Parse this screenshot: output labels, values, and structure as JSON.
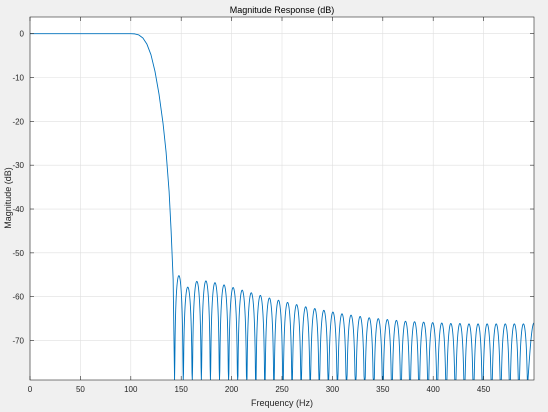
{
  "window": {
    "background": "#f0f0f0"
  },
  "chart_data": {
    "type": "line",
    "title": "Magnitude Response (dB)",
    "xlabel": "Frequency (Hz)",
    "ylabel": "Magnitude (dB)",
    "xlim": [
      0,
      500
    ],
    "ylim": [
      -79,
      3.8
    ],
    "xticks": [
      0,
      50,
      100,
      150,
      200,
      250,
      300,
      350,
      400,
      450
    ],
    "yticks": [
      0,
      -10,
      -20,
      -30,
      -40,
      -50,
      -60,
      -70
    ],
    "grid": true,
    "colors": {
      "line": "#0072bd",
      "axes_bg": "#ffffff",
      "grid": "#dfdfdf",
      "axis": "#262626"
    },
    "passband": [
      [
        0,
        0
      ],
      [
        100,
        0
      ],
      [
        104,
        -0.05
      ],
      [
        108,
        -0.3
      ],
      [
        112,
        -1.0
      ],
      [
        116,
        -2.4
      ],
      [
        120,
        -4.8
      ],
      [
        124,
        -8.6
      ],
      [
        128,
        -13.8
      ],
      [
        132,
        -20.5
      ],
      [
        135,
        -27
      ],
      [
        138,
        -36
      ],
      [
        140,
        -45
      ],
      [
        142,
        -56
      ],
      [
        143.4,
        -79
      ]
    ],
    "stopband": {
      "nulls": [
        143.4,
        152,
        161,
        170,
        179,
        188,
        197,
        206,
        215,
        224,
        233,
        242,
        251,
        260,
        269,
        278,
        287,
        296,
        305,
        314,
        323,
        332,
        341,
        350,
        359,
        368,
        377,
        386,
        395,
        404,
        413,
        422,
        431,
        440,
        449,
        458,
        467,
        476,
        485,
        494
      ],
      "peaks": [
        -55.2,
        -57.8,
        -56.5,
        -56.4,
        -56.8,
        -57.3,
        -57.9,
        -58.5,
        -59.1,
        -59.7,
        -60.3,
        -60.8,
        -61.3,
        -61.8,
        -62.3,
        -62.7,
        -63.1,
        -63.5,
        -63.9,
        -64.2,
        -64.5,
        -64.8,
        -65.0,
        -65.2,
        -65.4,
        -65.6,
        -65.7,
        -65.8,
        -65.9,
        -66.0,
        -66.1,
        -66.1,
        -66.2,
        -66.2,
        -66.2,
        -66.2,
        -66.2,
        -66.2,
        -66.2
      ],
      "end": [
        500,
        -66.0
      ]
    }
  }
}
